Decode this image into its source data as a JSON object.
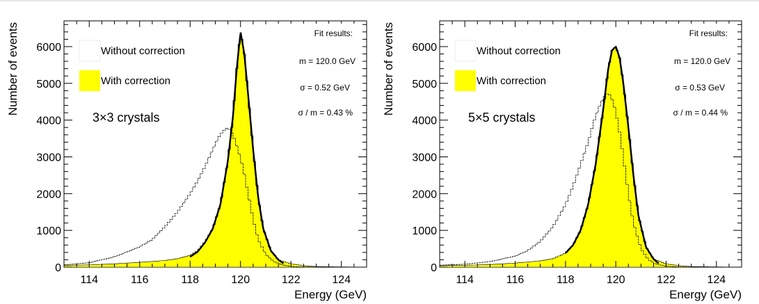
{
  "chart_data": [
    {
      "type": "area",
      "title": "",
      "xlabel": "Energy (GeV)",
      "ylabel": "Number of events",
      "xlim": [
        113,
        125
      ],
      "ylim": [
        0,
        6700
      ],
      "xticks": [
        "114",
        "116",
        "118",
        "120",
        "122",
        "124"
      ],
      "yticks": [
        "0",
        "1000",
        "2000",
        "3000",
        "4000",
        "5000",
        "6000"
      ],
      "annotation": "3×3 crystals",
      "legend": {
        "position": "top-left",
        "without_label": "Without correction",
        "with_label": "With correction"
      },
      "fit_results": {
        "header": "Fit results:",
        "mean": "m =   120.0 GeV",
        "sigma": "σ =    0.52 GeV",
        "ratio": "σ / m =   0.43 %"
      },
      "colors": {
        "fill": "#ffff00",
        "fit": "#000000",
        "hist": "#000000"
      },
      "series": [
        {
          "name": "With correction",
          "style": "filled-histogram",
          "x": [
            113,
            114,
            115,
            116,
            117,
            117.5,
            118,
            118.3,
            118.6,
            118.9,
            119.2,
            119.5,
            119.7,
            119.85,
            120,
            120.15,
            120.3,
            120.5,
            120.7,
            120.9,
            121.2,
            121.5,
            122,
            122.5,
            123,
            125
          ],
          "y": [
            50,
            60,
            90,
            130,
            180,
            230,
            320,
            450,
            700,
            1050,
            1700,
            2900,
            4100,
            5400,
            6400,
            5800,
            4700,
            3200,
            1900,
            1050,
            450,
            200,
            90,
            40,
            15,
            0
          ]
        },
        {
          "name": "Without correction",
          "style": "step-outline",
          "x": [
            113,
            114,
            115,
            116,
            116.5,
            117,
            117.5,
            118,
            118.3,
            118.6,
            118.9,
            119.1,
            119.3,
            119.5,
            119.7,
            119.9,
            120.1,
            120.3,
            120.5,
            120.7,
            121,
            121.3,
            121.6,
            122,
            122.5,
            125
          ],
          "y": [
            60,
            120,
            280,
            550,
            750,
            1100,
            1500,
            2000,
            2350,
            2750,
            3200,
            3500,
            3700,
            3800,
            3600,
            3200,
            2700,
            2000,
            1300,
            750,
            350,
            160,
            70,
            20,
            5,
            0
          ]
        },
        {
          "name": "Fit",
          "style": "line",
          "x": [
            118,
            118.3,
            118.6,
            118.9,
            119.2,
            119.5,
            119.7,
            119.85,
            120,
            120.15,
            120.3,
            120.5,
            120.7,
            120.9,
            121.2,
            121.5,
            121.7
          ],
          "y": [
            280,
            420,
            680,
            1050,
            1700,
            2900,
            4100,
            5400,
            6400,
            5800,
            4700,
            3200,
            1900,
            1050,
            450,
            200,
            100
          ]
        }
      ]
    },
    {
      "type": "area",
      "title": "",
      "xlabel": "Energy (GeV)",
      "ylabel": "Number of events",
      "xlim": [
        113,
        125
      ],
      "ylim": [
        0,
        6700
      ],
      "xticks": [
        "114",
        "116",
        "118",
        "120",
        "122",
        "124"
      ],
      "yticks": [
        "0",
        "1000",
        "2000",
        "3000",
        "4000",
        "5000",
        "6000"
      ],
      "annotation": "5×5 crystals",
      "legend": {
        "position": "top-left",
        "without_label": "Without correction",
        "with_label": "With correction"
      },
      "fit_results": {
        "header": "Fit results:",
        "mean": "m =   120.0 GeV",
        "sigma": "σ =    0.53 GeV",
        "ratio": "σ / m =   0.44 %"
      },
      "colors": {
        "fill": "#ffff00",
        "fit": "#000000",
        "hist": "#000000"
      },
      "series": [
        {
          "name": "With correction",
          "style": "filled-histogram",
          "x": [
            113,
            114,
            115,
            116,
            117,
            117.5,
            118,
            118.3,
            118.6,
            118.9,
            119.2,
            119.5,
            119.7,
            119.85,
            120,
            120.15,
            120.3,
            120.5,
            120.7,
            120.9,
            121.2,
            121.5,
            122,
            122.5,
            123,
            125
          ],
          "y": [
            40,
            50,
            70,
            110,
            170,
            230,
            380,
            600,
            1000,
            1700,
            2800,
            4300,
            5400,
            5900,
            6000,
            5700,
            5000,
            3800,
            2500,
            1400,
            550,
            220,
            90,
            40,
            15,
            0
          ]
        },
        {
          "name": "Without correction",
          "style": "step-outline",
          "x": [
            113,
            114,
            115,
            116,
            116.5,
            117,
            117.5,
            118,
            118.3,
            118.6,
            118.9,
            119.1,
            119.3,
            119.5,
            119.7,
            119.9,
            120.1,
            120.3,
            120.5,
            120.7,
            121,
            121.3,
            121.6,
            122,
            122.5,
            125
          ],
          "y": [
            50,
            80,
            150,
            300,
            450,
            700,
            1100,
            1700,
            2200,
            2800,
            3400,
            3900,
            4300,
            4600,
            4750,
            4500,
            3900,
            3000,
            2000,
            1200,
            500,
            200,
            80,
            25,
            5,
            0
          ]
        },
        {
          "name": "Fit",
          "style": "line",
          "x": [
            118,
            118.3,
            118.6,
            118.9,
            119.2,
            119.5,
            119.7,
            119.85,
            120,
            120.15,
            120.3,
            120.5,
            120.7,
            120.9,
            121.2,
            121.5,
            121.7
          ],
          "y": [
            380,
            600,
            1000,
            1700,
            2800,
            4300,
            5400,
            5900,
            6000,
            5700,
            5000,
            3800,
            2500,
            1400,
            550,
            220,
            100
          ]
        }
      ]
    }
  ]
}
